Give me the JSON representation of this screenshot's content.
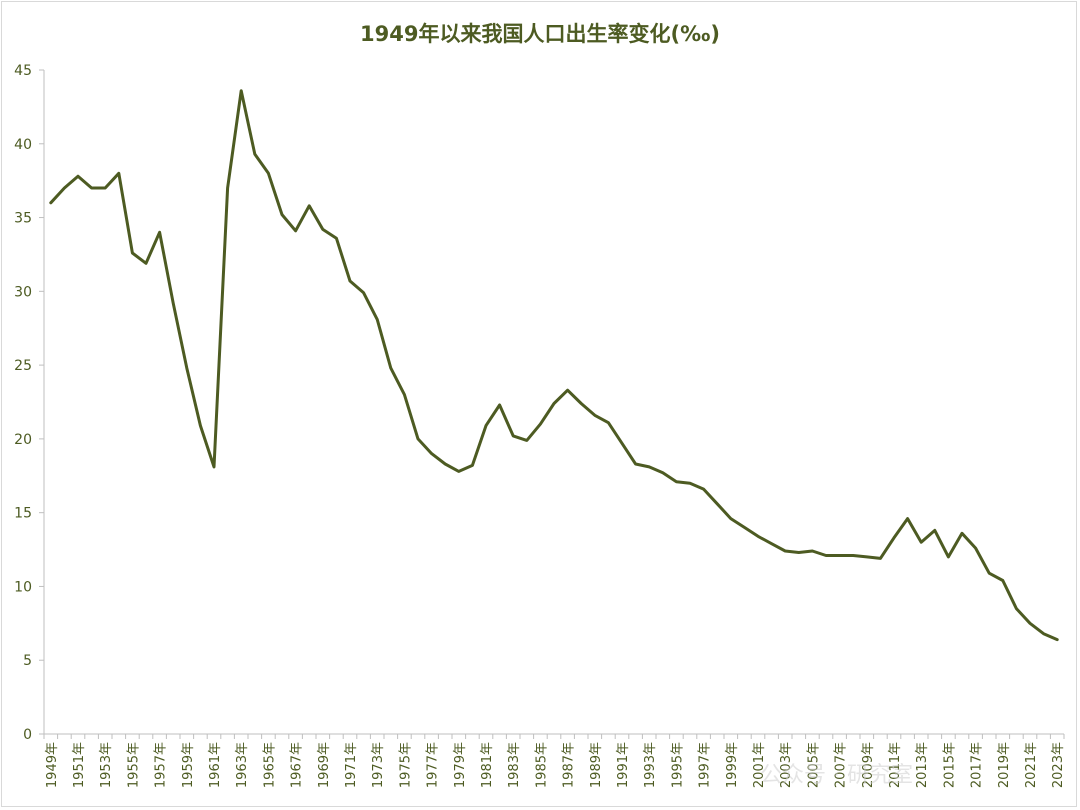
{
  "chart_data": {
    "type": "line",
    "title": "1949年以来我国人口出生率变化(‰)",
    "xlabel": "",
    "ylabel": "",
    "ylim": [
      0,
      45
    ],
    "yticks": [
      0,
      5,
      10,
      15,
      20,
      25,
      30,
      35,
      40,
      45
    ],
    "grid": false,
    "legend": "none",
    "line_color": "#4d5b22",
    "text_color": "#4d5b22",
    "x": [
      "1949年",
      "1950年",
      "1951年",
      "1952年",
      "1953年",
      "1954年",
      "1955年",
      "1956年",
      "1957年",
      "1958年",
      "1959年",
      "1960年",
      "1961年",
      "1962年",
      "1963年",
      "1964年",
      "1965年",
      "1966年",
      "1967年",
      "1968年",
      "1969年",
      "1970年",
      "1971年",
      "1972年",
      "1973年",
      "1974年",
      "1975年",
      "1976年",
      "1977年",
      "1978年",
      "1979年",
      "1980年",
      "1981年",
      "1982年",
      "1983年",
      "1984年",
      "1985年",
      "1986年",
      "1987年",
      "1988年",
      "1989年",
      "1990年",
      "1991年",
      "1992年",
      "1993年",
      "1994年",
      "1995年",
      "1996年",
      "1997年",
      "1998年",
      "1999年",
      "2000年",
      "2001年",
      "2002年",
      "2003年",
      "2004年",
      "2005年",
      "2006年",
      "2007年",
      "2008年",
      "2009年",
      "2010年",
      "2011年",
      "2012年",
      "2013年",
      "2014年",
      "2015年",
      "2016年",
      "2017年",
      "2018年",
      "2019年",
      "2020年",
      "2021年",
      "2022年",
      "2023年"
    ],
    "x_tick_labels_shown": [
      "1949年",
      "1951年",
      "1953年",
      "1955年",
      "1957年",
      "1959年",
      "1961年",
      "1963年",
      "1965年",
      "1967年",
      "1969年",
      "1971年",
      "1973年",
      "1975年",
      "1977年",
      "1979年",
      "1981年",
      "1983年",
      "1985年",
      "1987年",
      "1989年",
      "1991年",
      "1993年",
      "1995年",
      "1997年",
      "1999年",
      "2001年",
      "2003年",
      "2005年",
      "2007年",
      "2009年",
      "2011年",
      "2013年",
      "2015年",
      "2017年",
      "2019年",
      "2021年",
      "2023年"
    ],
    "series": [
      {
        "values": [
          36.0,
          37.0,
          37.8,
          37.0,
          37.0,
          38.0,
          32.6,
          31.9,
          34.0,
          29.2,
          24.8,
          20.9,
          18.1,
          37.0,
          43.6,
          39.3,
          38.0,
          35.2,
          34.1,
          35.8,
          34.2,
          33.6,
          30.7,
          29.9,
          28.1,
          24.8,
          23.0,
          20.0,
          19.0,
          18.3,
          17.8,
          18.2,
          20.9,
          22.3,
          20.2,
          19.9,
          21.0,
          22.4,
          23.3,
          22.4,
          21.6,
          21.1,
          19.7,
          18.3,
          18.1,
          17.7,
          17.1,
          17.0,
          16.6,
          15.6,
          14.6,
          14.0,
          13.4,
          12.9,
          12.4,
          12.3,
          12.4,
          12.1,
          12.1,
          12.1,
          12.0,
          11.9,
          13.3,
          14.6,
          13.0,
          13.8,
          12.0,
          13.6,
          12.6,
          10.9,
          10.4,
          8.5,
          7.5,
          6.8,
          6.4
        ]
      }
    ]
  },
  "watermark": "公众号 · 研究室"
}
